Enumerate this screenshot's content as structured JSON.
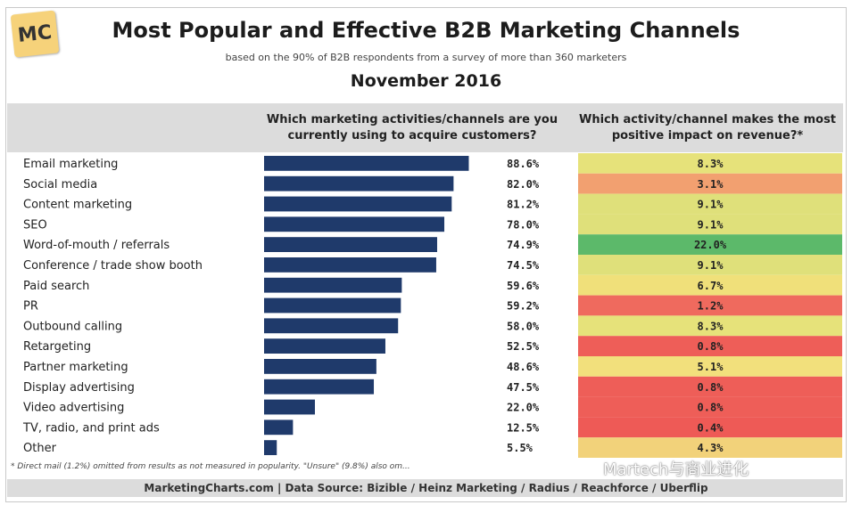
{
  "logo_text": "MC",
  "chart_data": {
    "type": "bar",
    "title": "Most Popular and Effective B2B Marketing Channels",
    "subtitle": "based on the 90% of B2B respondents from a survey of more than 360 marketers",
    "date": "November 2016",
    "column1_header": "Which marketing activities/channels are you currently using to acquire customers?",
    "column2_header": "Which activity/channel makes the most positive impact on revenue?*",
    "categories": [
      "Email marketing",
      "Social media",
      "Content marketing",
      "SEO",
      "Word-of-mouth / referrals",
      "Conference / trade show booth",
      "Paid search",
      "PR",
      "Outbound calling",
      "Retargeting",
      "Partner marketing",
      "Display advertising",
      "Video advertising",
      "TV, radio, and print ads",
      "Other"
    ],
    "usage_values": [
      88.6,
      82.0,
      81.2,
      78.0,
      74.9,
      74.5,
      59.6,
      59.2,
      58.0,
      52.5,
      48.6,
      47.5,
      22.0,
      12.5,
      5.5
    ],
    "usage_labels": [
      "88.6%",
      "82.0%",
      "81.2%",
      "78.0%",
      "74.9%",
      "74.5%",
      "59.6%",
      "59.2%",
      "58.0%",
      "52.5%",
      "48.6%",
      "47.5%",
      "22.0%",
      "12.5%",
      "5.5%"
    ],
    "impact_values": [
      8.3,
      3.1,
      9.1,
      9.1,
      22.0,
      9.1,
      6.7,
      1.2,
      8.3,
      0.8,
      5.1,
      0.8,
      0.8,
      0.4,
      4.3
    ],
    "impact_labels": [
      "8.3%",
      "3.1%",
      "9.1%",
      "9.1%",
      "22.0%",
      "9.1%",
      "6.7%",
      "1.2%",
      "8.3%",
      "0.8%",
      "5.1%",
      "0.8%",
      "0.8%",
      "0.4%",
      "4.3%"
    ],
    "impact_colors": [
      "#e6e27a",
      "#f2a070",
      "#dfe07a",
      "#dfe07a",
      "#5cb96a",
      "#dfe07a",
      "#f0e07a",
      "#ef6a5e",
      "#e6e27a",
      "#ee5e58",
      "#f2e07c",
      "#ee5e58",
      "#ee5e58",
      "#ee5a56",
      "#f2d27a"
    ],
    "bar_color": "#1f3a6b",
    "xlim": [
      0,
      100
    ]
  },
  "footnote": "* Direct mail (1.2%) omitted from results as not measured in popularity. \"Unsure\" (9.8%) also om...",
  "source": "MarketingCharts.com | Data Source: Bizible / Heinz Marketing / Radius / Reachforce / Uberflip",
  "watermark": "Martech与商业进化"
}
